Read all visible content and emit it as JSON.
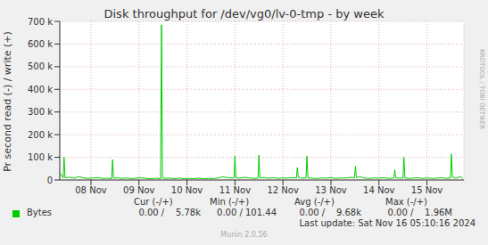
{
  "chart_data": {
    "type": "line",
    "title": "Disk throughput for /dev/vg0/lv-0-tmp - by week",
    "y_label": "Pr second read (-) / write (+)",
    "x": [
      7.36,
      7.42,
      7.44,
      7.46,
      7.55,
      7.65,
      7.75,
      7.85,
      7.95,
      8.05,
      8.15,
      8.25,
      8.35,
      8.43,
      8.45,
      8.47,
      8.55,
      8.65,
      8.75,
      8.85,
      8.95,
      9.05,
      9.15,
      9.25,
      9.35,
      9.45,
      9.47,
      9.49,
      9.55,
      9.65,
      9.75,
      9.85,
      9.95,
      10.05,
      10.15,
      10.25,
      10.35,
      10.45,
      10.55,
      10.65,
      10.75,
      10.85,
      10.95,
      10.98,
      11.0,
      11.02,
      11.1,
      11.2,
      11.3,
      11.4,
      11.48,
      11.5,
      11.52,
      11.6,
      11.7,
      11.8,
      11.9,
      12.0,
      12.1,
      12.2,
      12.28,
      12.3,
      12.32,
      12.4,
      12.48,
      12.5,
      12.52,
      12.6,
      12.7,
      12.8,
      12.9,
      13.0,
      13.1,
      13.2,
      13.3,
      13.4,
      13.49,
      13.51,
      13.53,
      13.6,
      13.7,
      13.8,
      13.9,
      14.0,
      14.1,
      14.2,
      14.31,
      14.33,
      14.35,
      14.42,
      14.5,
      14.52,
      14.54,
      14.6,
      14.7,
      14.8,
      14.9,
      15.0,
      15.1,
      15.2,
      15.3,
      15.4,
      15.49,
      15.51,
      15.53,
      15.6,
      15.7,
      15.75
    ],
    "series": [
      {
        "name": "Bytes",
        "color": "#00cc00",
        "values": [
          30000,
          8000,
          100000,
          10000,
          12000,
          8000,
          15000,
          9000,
          7000,
          9000,
          11000,
          7000,
          8000,
          6000,
          90000,
          8000,
          10000,
          7000,
          9000,
          6000,
          8000,
          10000,
          7000,
          5000,
          8000,
          6000,
          685000,
          9000,
          7000,
          8000,
          6000,
          9000,
          5000,
          7000,
          6000,
          8000,
          5000,
          7000,
          6000,
          9000,
          14000,
          10000,
          8000,
          9000,
          105000,
          10000,
          8000,
          12000,
          9000,
          7000,
          8000,
          110000,
          9000,
          11000,
          8000,
          10000,
          7000,
          9000,
          8000,
          10000,
          9000,
          55000,
          12000,
          8000,
          9000,
          105000,
          10000,
          8000,
          7000,
          9000,
          8000,
          10000,
          7000,
          9000,
          8000,
          12000,
          9000,
          60000,
          10000,
          15000,
          8000,
          7000,
          9000,
          8000,
          10000,
          7000,
          9000,
          45000,
          10000,
          8000,
          9000,
          100000,
          9000,
          7000,
          8000,
          10000,
          7000,
          9000,
          7000,
          8000,
          10000,
          7000,
          9000,
          115000,
          12000,
          8000,
          15000,
          6000
        ]
      }
    ],
    "xlim": [
      7.35,
      15.77
    ],
    "xticks": [
      {
        "value": 8,
        "label": "08 Nov"
      },
      {
        "value": 9,
        "label": "09 Nov"
      },
      {
        "value": 10,
        "label": "10 Nov"
      },
      {
        "value": 11,
        "label": "11 Nov"
      },
      {
        "value": 12,
        "label": "12 Nov"
      },
      {
        "value": 13,
        "label": "13 Nov"
      },
      {
        "value": 14,
        "label": "14 Nov"
      },
      {
        "value": 15,
        "label": "15 Nov"
      }
    ],
    "ylim": [
      0,
      700000
    ],
    "yticks": [
      0,
      {
        "value": 100000,
        "label": "100 k"
      },
      {
        "value": 200000,
        "label": "200 k"
      },
      {
        "value": 300000,
        "label": "300 k"
      },
      {
        "value": 400000,
        "label": "400 k"
      },
      {
        "value": 500000,
        "label": "500 k"
      },
      {
        "value": 600000,
        "label": "600 k"
      },
      {
        "value": 700000,
        "label": "700 k"
      }
    ],
    "grid": true,
    "stats": {
      "headers": [
        "Cur (-/+)",
        "Min (-/+)",
        "Avg (-/+)",
        "Max (-/+)"
      ],
      "row": [
        "0.00 /    5.78k",
        "0.00 / 101.44",
        "0.00 /    9.68k",
        "0.00 /    1.96M"
      ]
    },
    "footer": [
      "Last update: Sat Nov 16 05:10:16 2024",
      "Munin 2.0.56"
    ],
    "side_text": "RRDTOOL / TOBI OETIKER"
  }
}
